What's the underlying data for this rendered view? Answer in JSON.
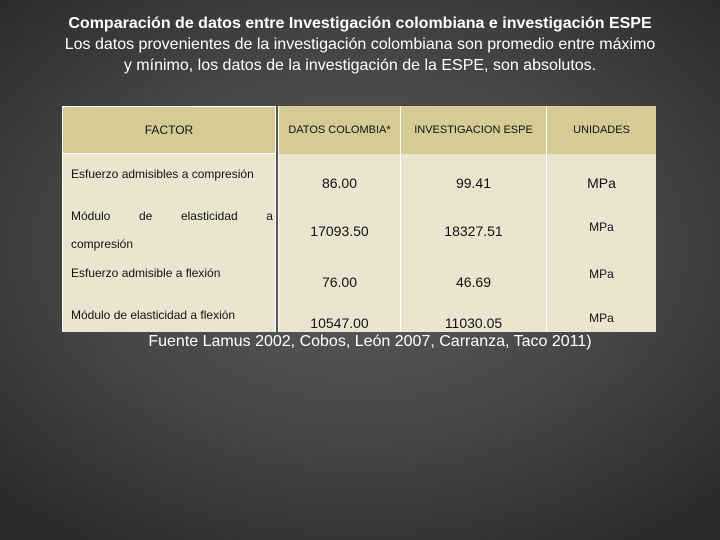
{
  "title": {
    "line1": "Comparación de datos entre Investigación colombiana e investigación ESPE",
    "line2": "Los datos provenientes de la investigación colombiana son promedio entre máximo",
    "line3": "y mínimo, los datos de la investigación de la ESPE, son absolutos."
  },
  "table": {
    "headers": {
      "factor": "FACTOR",
      "colombia": "DATOS COLOMBIA*",
      "espe": "INVESTIGACION ESPE",
      "units": "UNIDADES"
    },
    "rows": [
      {
        "factor": "Esfuerzo admisibles a compresión",
        "colombia": "86.00",
        "espe": "99.41",
        "units": "MPa"
      },
      {
        "factor_words": [
          "Módulo",
          "de",
          "elasticidad",
          "a"
        ],
        "factor_line2": "compresión",
        "colombia": "17093.50",
        "espe": "18327.51",
        "units": "MPa"
      },
      {
        "factor": "Esfuerzo admisible a flexión",
        "colombia": "76.00",
        "espe": "46.69",
        "units": "MPa"
      },
      {
        "factor": "Módulo de elasticidad a flexión",
        "colombia": "10547.00",
        "espe": "11030.05",
        "units": "MPa"
      }
    ]
  },
  "source": "Fuente Lamus 2002, Cobos, León 2007, Carranza, Taco 2011)"
}
